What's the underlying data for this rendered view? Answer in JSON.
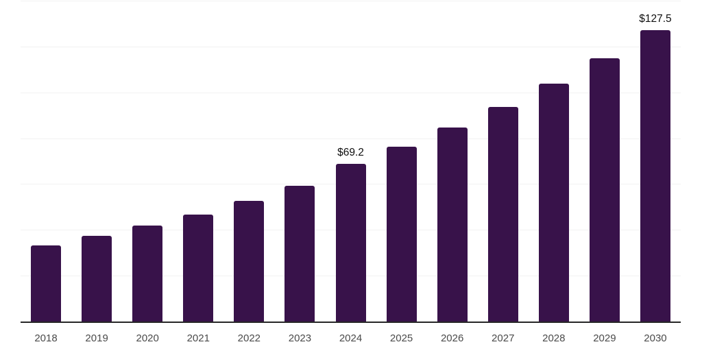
{
  "chart_data": {
    "type": "bar",
    "categories": [
      "2018",
      "2019",
      "2020",
      "2021",
      "2022",
      "2023",
      "2024",
      "2025",
      "2026",
      "2027",
      "2028",
      "2029",
      "2030"
    ],
    "values": [
      33.4,
      37.7,
      42.1,
      47.0,
      52.9,
      59.5,
      69.2,
      76.6,
      84.9,
      94.0,
      104.0,
      115.2,
      127.5
    ],
    "data_labels": [
      {
        "category": "2024",
        "text": "$69.2"
      },
      {
        "category": "2030",
        "text": "$127.5"
      }
    ],
    "ylim": [
      0,
      140
    ],
    "gridline_step": 20,
    "grid": true,
    "legend_position": "none",
    "y_axis_labels_visible": false,
    "colors": {
      "bar": "#38124A",
      "gridline": "#f2f2f2",
      "axis_line": "#262626",
      "tick_label": "#4a4a4a",
      "data_label": "#0f0f0f",
      "background": "#ffffff"
    }
  }
}
